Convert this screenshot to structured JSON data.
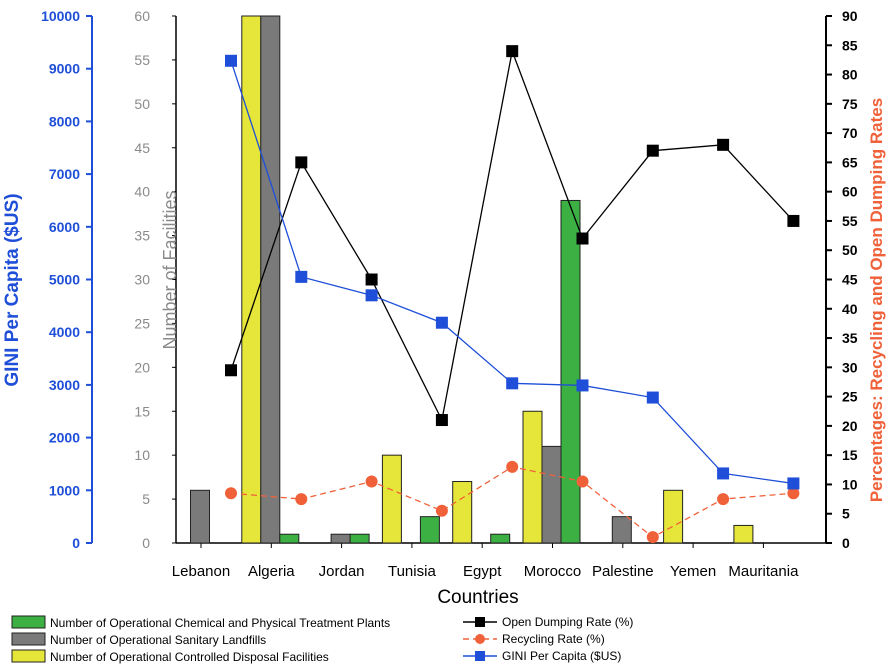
{
  "chart_data": {
    "type": "bar",
    "categories": [
      "Lebanon",
      "Algeria",
      "Jordan",
      "Tunisia",
      "Egypt",
      "Morocco",
      "Palestine",
      "Yemen",
      "Mauritania"
    ],
    "xlabel": "Countries",
    "axes": {
      "gini": {
        "label": "GINI Per Capita ($US)",
        "range": [
          0,
          10000
        ],
        "ticks": [
          0,
          1000,
          2000,
          3000,
          4000,
          5000,
          6000,
          7000,
          8000,
          9000,
          10000
        ],
        "color": "#1f4fd8"
      },
      "facilities": {
        "label": "Number of Facilities",
        "range": [
          0,
          60
        ],
        "ticks": [
          0,
          5,
          10,
          15,
          20,
          25,
          30,
          35,
          40,
          45,
          50,
          55,
          60
        ],
        "color": "#8a8a8a"
      },
      "percent": {
        "label": "Percentages: Recycling and Open Dumping Rates",
        "range": [
          0,
          90
        ],
        "ticks": [
          0,
          5,
          10,
          15,
          20,
          25,
          30,
          35,
          40,
          45,
          50,
          55,
          60,
          65,
          70,
          75,
          80,
          85,
          90
        ],
        "color": "#f0613a"
      }
    },
    "bar_series": [
      {
        "name": "Number of Operational  Controlled  Disposal Facilities",
        "axis": "facilities",
        "color": "#e6e63a",
        "values": [
          null,
          60,
          null,
          10,
          7,
          15,
          null,
          6,
          2
        ]
      },
      {
        "name": "Number of Operational Sanitary Landfills",
        "axis": "facilities",
        "color": "#7a7a7a",
        "values": [
          6,
          60,
          1,
          null,
          null,
          11,
          3,
          null,
          null
        ]
      },
      {
        "name": "Number of Operational Chemical and Physical Treatment Plants",
        "axis": "facilities",
        "color": "#3cb043",
        "values": [
          null,
          1,
          1,
          3,
          1,
          39,
          null,
          null,
          null
        ]
      }
    ],
    "line_series": [
      {
        "name": "Open Dumping Rate (%)",
        "axis": "percent",
        "color": "#000000",
        "marker": "square",
        "values": [
          29.5,
          65,
          45,
          21,
          84,
          52,
          67,
          68,
          55
        ]
      },
      {
        "name": "Recycling Rate (%)",
        "axis": "percent",
        "color": "#f0613a",
        "marker": "circle",
        "values": [
          8.5,
          7.5,
          10.5,
          5.5,
          13,
          10.5,
          1,
          7.5,
          8.5
        ]
      },
      {
        "name": "GINI Per Capita ($US)",
        "axis": "gini",
        "color": "#1f4fd8",
        "marker": "square",
        "values": [
          9150,
          5050,
          4700,
          4180,
          3030,
          2990,
          2760,
          1320,
          1130
        ]
      }
    ]
  }
}
